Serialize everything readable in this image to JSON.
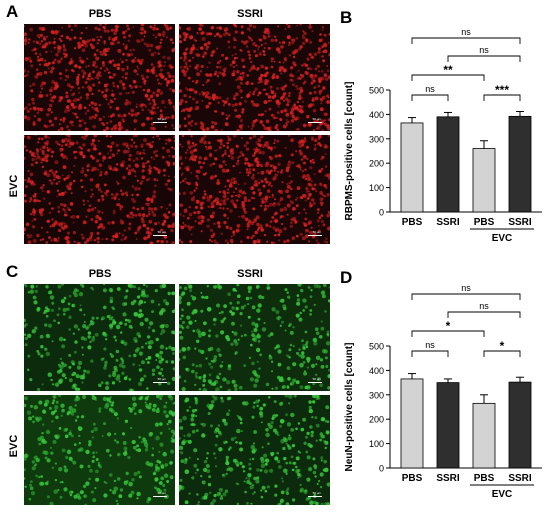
{
  "panels": {
    "A": {
      "letter": "A",
      "col1": "PBS",
      "col2": "SSRI",
      "row2": "EVC",
      "scale_label": "50 µm",
      "color": "#d42020"
    },
    "B": {
      "letter": "B"
    },
    "C": {
      "letter": "C",
      "col1": "PBS",
      "col2": "SSRI",
      "row2": "EVC",
      "scale_label": "50 µm",
      "color": "#36c43a"
    },
    "D": {
      "letter": "D"
    }
  },
  "chart_data": [
    {
      "id": "B",
      "type": "bar",
      "title": "",
      "xlabel": "",
      "ylabel": "RBPMS-positive cells [count]",
      "ylim": [
        0,
        500
      ],
      "yticks": [
        "0",
        "100",
        "200",
        "300",
        "400",
        "500"
      ],
      "categories": [
        "PBS",
        "SSRI",
        "PBS",
        "SSRI"
      ],
      "group_label": "EVC",
      "values": [
        365,
        390,
        260,
        392
      ],
      "errors": [
        22,
        18,
        32,
        20
      ],
      "bar_colors": [
        "#d3d3d3",
        "#2f2f2f",
        "#d3d3d3",
        "#2f2f2f"
      ],
      "significance": [
        {
          "from": 0,
          "to": 3,
          "label": "ns"
        },
        {
          "from": 1,
          "to": 3,
          "label": "ns"
        },
        {
          "from": 0,
          "to": 2,
          "label": "**"
        },
        {
          "from": 0,
          "to": 1,
          "label": "ns"
        },
        {
          "from": 2,
          "to": 3,
          "label": "***"
        }
      ]
    },
    {
      "id": "D",
      "type": "bar",
      "title": "",
      "xlabel": "",
      "ylabel": "NeuN-positive cells [count]",
      "ylim": [
        0,
        500
      ],
      "yticks": [
        "0",
        "100",
        "200",
        "300",
        "400",
        "500"
      ],
      "categories": [
        "PBS",
        "SSRI",
        "PBS",
        "SSRI"
      ],
      "group_label": "EVC",
      "values": [
        365,
        350,
        265,
        352
      ],
      "errors": [
        22,
        15,
        35,
        20
      ],
      "bar_colors": [
        "#d3d3d3",
        "#2f2f2f",
        "#d3d3d3",
        "#2f2f2f"
      ],
      "significance": [
        {
          "from": 0,
          "to": 3,
          "label": "ns"
        },
        {
          "from": 1,
          "to": 3,
          "label": "ns"
        },
        {
          "from": 0,
          "to": 2,
          "label": "*"
        },
        {
          "from": 0,
          "to": 1,
          "label": "ns"
        },
        {
          "from": 2,
          "to": 3,
          "label": "*"
        }
      ]
    }
  ]
}
